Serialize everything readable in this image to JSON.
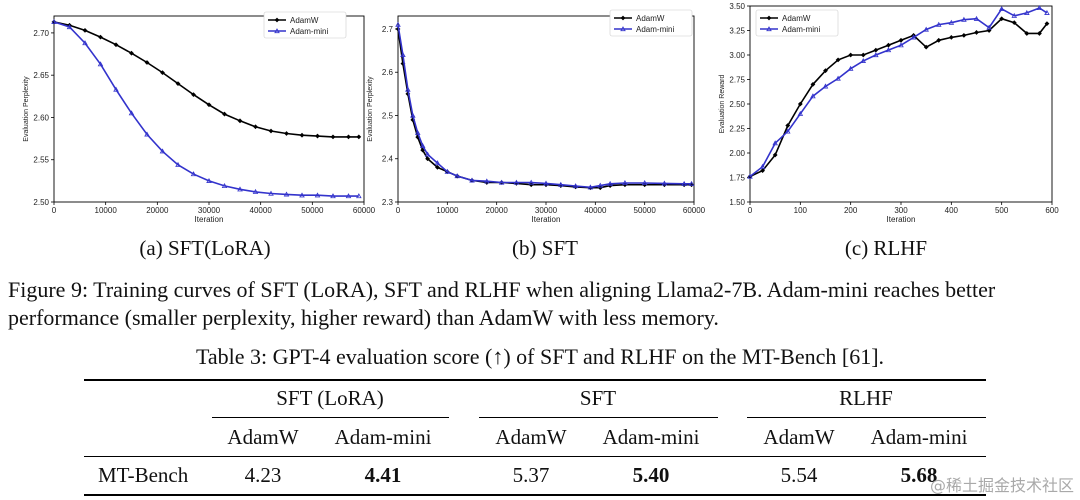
{
  "figure": {
    "subcaptions": [
      "(a)  SFT(LoRA)",
      "(b)  SFT",
      "(c)  RLHF"
    ],
    "caption": "Figure 9: Training curves of SFT (LoRA), SFT and RLHF when aligning Llama2-7B. Adam-mini reaches better performance (smaller perplexity, higher reward) than AdamW with less memory."
  },
  "chart_data": [
    {
      "type": "line",
      "title": "",
      "xlabel": "Iteration",
      "ylabel": "Evaluation Perplexity",
      "xlim": [
        0,
        60000
      ],
      "ylim": [
        2.5,
        2.72
      ],
      "xticks": [
        0,
        10000,
        20000,
        30000,
        40000,
        50000,
        60000
      ],
      "yticks": [
        2.5,
        2.55,
        2.6,
        2.65,
        2.7
      ],
      "ytick_labels": [
        "2.50",
        "2.55",
        "2.60",
        "2.65",
        "2.70"
      ],
      "legend": "top-right",
      "series": [
        {
          "name": "AdamW",
          "color": "#000000",
          "marker": "diamond",
          "x": [
            0,
            3000,
            6000,
            9000,
            12000,
            15000,
            18000,
            21000,
            24000,
            27000,
            30000,
            33000,
            36000,
            39000,
            42000,
            45000,
            48000,
            51000,
            54000,
            57000,
            59000
          ],
          "y": [
            2.713,
            2.709,
            2.703,
            2.695,
            2.686,
            2.676,
            2.665,
            2.653,
            2.64,
            2.627,
            2.615,
            2.604,
            2.596,
            2.589,
            2.584,
            2.581,
            2.579,
            2.578,
            2.577,
            2.577,
            2.577
          ]
        },
        {
          "name": "Adam-mini",
          "color": "#3333cc",
          "marker": "triangle",
          "x": [
            0,
            3000,
            6000,
            9000,
            12000,
            15000,
            18000,
            21000,
            24000,
            27000,
            30000,
            33000,
            36000,
            39000,
            42000,
            45000,
            48000,
            51000,
            54000,
            57000,
            59000
          ],
          "y": [
            2.713,
            2.707,
            2.688,
            2.663,
            2.633,
            2.605,
            2.58,
            2.56,
            2.544,
            2.533,
            2.525,
            2.519,
            2.515,
            2.512,
            2.51,
            2.509,
            2.508,
            2.508,
            2.507,
            2.507,
            2.507
          ]
        }
      ]
    },
    {
      "type": "line",
      "title": "",
      "xlabel": "Iteration",
      "ylabel": "Evaluation Perplexity",
      "xlim": [
        0,
        60000
      ],
      "ylim": [
        2.3,
        2.73
      ],
      "xticks": [
        0,
        10000,
        20000,
        30000,
        40000,
        50000,
        60000
      ],
      "yticks": [
        2.3,
        2.4,
        2.5,
        2.6,
        2.7
      ],
      "ytick_labels": [
        "2.3",
        "2.4",
        "2.5",
        "2.6",
        "2.7"
      ],
      "legend": "top-right",
      "series": [
        {
          "name": "AdamW",
          "color": "#000000",
          "marker": "diamond",
          "x": [
            0,
            1000,
            2000,
            3000,
            4000,
            5000,
            6000,
            8000,
            10000,
            12000,
            15000,
            18000,
            21000,
            24000,
            27000,
            30000,
            33000,
            36000,
            39000,
            41000,
            43000,
            46000,
            50000,
            54000,
            58000,
            59500
          ],
          "y": [
            2.7,
            2.62,
            2.55,
            2.49,
            2.45,
            2.42,
            2.4,
            2.38,
            2.37,
            2.36,
            2.35,
            2.345,
            2.345,
            2.343,
            2.34,
            2.34,
            2.338,
            2.335,
            2.333,
            2.333,
            2.338,
            2.34,
            2.34,
            2.34,
            2.34,
            2.34
          ]
        },
        {
          "name": "Adam-mini",
          "color": "#3333cc",
          "marker": "triangle",
          "x": [
            0,
            1000,
            2000,
            3000,
            4000,
            5000,
            6000,
            8000,
            10000,
            12000,
            15000,
            18000,
            21000,
            24000,
            27000,
            30000,
            33000,
            36000,
            39000,
            41000,
            43000,
            46000,
            50000,
            54000,
            58000,
            59500
          ],
          "y": [
            2.71,
            2.64,
            2.56,
            2.5,
            2.46,
            2.43,
            2.41,
            2.39,
            2.37,
            2.36,
            2.35,
            2.348,
            2.345,
            2.345,
            2.345,
            2.343,
            2.34,
            2.337,
            2.334,
            2.338,
            2.342,
            2.344,
            2.344,
            2.343,
            2.342,
            2.342
          ]
        }
      ]
    },
    {
      "type": "line",
      "title": "",
      "xlabel": "Iteration",
      "ylabel": "Evaluation Reward",
      "xlim": [
        0,
        600
      ],
      "ylim": [
        1.5,
        3.5
      ],
      "xticks": [
        0,
        100,
        200,
        300,
        400,
        500,
        600
      ],
      "yticks": [
        1.5,
        1.75,
        2.0,
        2.25,
        2.5,
        2.75,
        3.0,
        3.25,
        3.5
      ],
      "ytick_labels": [
        "1.50",
        "1.75",
        "2.00",
        "2.25",
        "2.50",
        "2.75",
        "3.00",
        "3.25",
        "3.50"
      ],
      "legend": "top-left",
      "series": [
        {
          "name": "AdamW",
          "color": "#000000",
          "marker": "diamond",
          "x": [
            0,
            25,
            50,
            75,
            100,
            125,
            150,
            175,
            200,
            225,
            250,
            275,
            300,
            325,
            350,
            375,
            400,
            425,
            450,
            475,
            500,
            525,
            550,
            575,
            590
          ],
          "y": [
            1.76,
            1.82,
            1.98,
            2.28,
            2.5,
            2.7,
            2.84,
            2.95,
            3.0,
            3.0,
            3.05,
            3.1,
            3.15,
            3.2,
            3.08,
            3.15,
            3.18,
            3.2,
            3.23,
            3.25,
            3.37,
            3.33,
            3.22,
            3.22,
            3.32
          ]
        },
        {
          "name": "Adam-mini",
          "color": "#3333cc",
          "marker": "triangle",
          "x": [
            0,
            25,
            50,
            75,
            100,
            125,
            150,
            175,
            200,
            225,
            250,
            275,
            300,
            325,
            350,
            375,
            400,
            425,
            450,
            475,
            500,
            525,
            550,
            575,
            590
          ],
          "y": [
            1.76,
            1.86,
            2.1,
            2.22,
            2.4,
            2.58,
            2.68,
            2.76,
            2.86,
            2.94,
            3.0,
            3.05,
            3.1,
            3.18,
            3.26,
            3.31,
            3.33,
            3.36,
            3.37,
            3.28,
            3.47,
            3.4,
            3.43,
            3.48,
            3.43
          ]
        }
      ]
    }
  ],
  "table": {
    "caption": "Table 3: GPT-4 evaluation score (↑) of SFT and RLHF on the MT-Bench [61].",
    "groups": [
      "SFT (LoRA)",
      "SFT",
      "RLHF"
    ],
    "subheaders": [
      "AdamW",
      "Adam-mini",
      "AdamW",
      "Adam-mini",
      "AdamW",
      "Adam-mini"
    ],
    "row_label": "MT-Bench",
    "values": [
      "4.23",
      "4.41",
      "5.37",
      "5.40",
      "5.54",
      "5.68"
    ]
  },
  "watermark": "@稀土掘金技术社区"
}
